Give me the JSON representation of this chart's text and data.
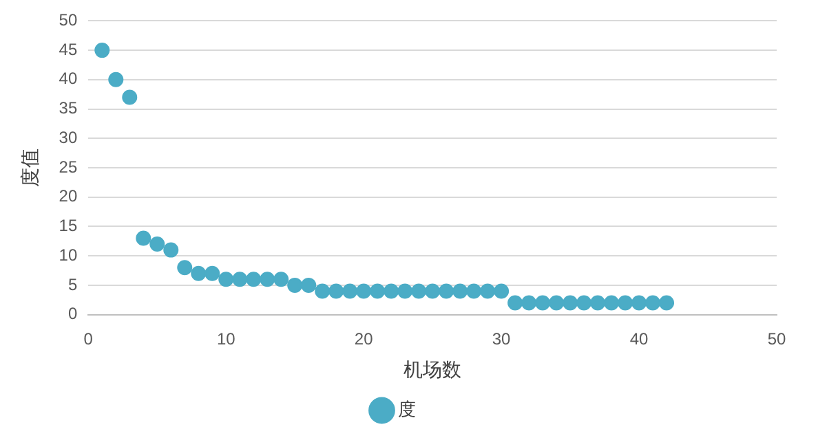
{
  "chart_data": {
    "type": "scatter",
    "xlabel": "机场数",
    "ylabel": "度值",
    "x": [
      1,
      2,
      3,
      4,
      5,
      6,
      7,
      8,
      9,
      10,
      11,
      12,
      13,
      14,
      15,
      16,
      17,
      18,
      19,
      20,
      21,
      22,
      23,
      24,
      25,
      26,
      27,
      28,
      29,
      30,
      31,
      32,
      33,
      34,
      35,
      36,
      37,
      38,
      39,
      40,
      41,
      42
    ],
    "series": [
      {
        "name": "度",
        "color": "#4bacc6",
        "values": [
          45,
          40,
          37,
          13,
          12,
          11,
          8,
          7,
          7,
          6,
          6,
          6,
          6,
          6,
          5,
          5,
          4,
          4,
          4,
          4,
          4,
          4,
          4,
          4,
          4,
          4,
          4,
          4,
          4,
          4,
          2,
          2,
          2,
          2,
          2,
          2,
          2,
          2,
          2,
          2,
          2,
          2
        ]
      }
    ],
    "xlim": [
      0,
      50
    ],
    "xticks": [
      0,
      10,
      20,
      30,
      40,
      50
    ],
    "ylim": [
      0,
      50
    ],
    "yticks": [
      0,
      5,
      10,
      15,
      20,
      25,
      30,
      35,
      40,
      45,
      50
    ],
    "grid": "y",
    "legend": "bottom",
    "marker": "circle"
  }
}
